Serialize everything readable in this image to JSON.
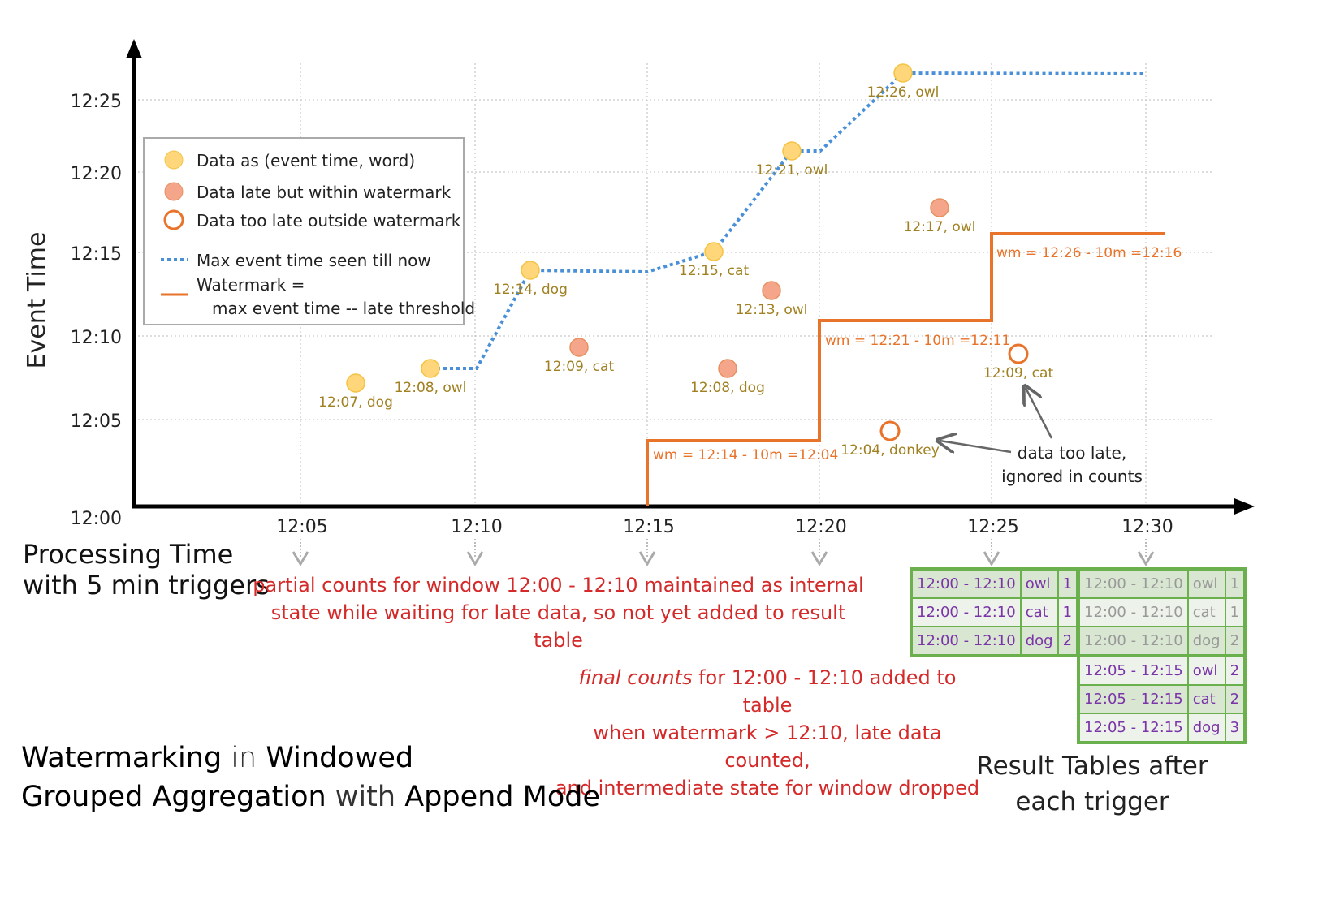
{
  "axes": {
    "y_label": "Event Time",
    "x_label_line1": "Processing Time",
    "x_label_line2": "with 5 min triggers",
    "y_ticks": [
      "12:00",
      "12:05",
      "12:10",
      "12:15",
      "12:20",
      "12:25"
    ],
    "x_ticks": [
      "12:05",
      "12:10",
      "12:15",
      "12:20",
      "12:25",
      "12:30"
    ]
  },
  "legend": {
    "on_time": "Data as (event time, word)",
    "late": "Data late but within watermark",
    "too_late": "Data too late outside watermark",
    "max_event": "Max event time seen till now",
    "watermark_1": "Watermark =",
    "watermark_2": "max event time -- late threshold"
  },
  "colors": {
    "on_time": "#ffd77a",
    "late": "#f4a58a",
    "too_late": "#e8732a",
    "max_event": "#4a90d9",
    "watermark": "#e8732a",
    "table": "#6ab04c"
  },
  "points": [
    {
      "type": "on_time",
      "label": "12:07, dog"
    },
    {
      "type": "on_time",
      "label": "12:08, owl"
    },
    {
      "type": "on_time",
      "label": "12:14, dog"
    },
    {
      "type": "on_time",
      "label": "12:15, cat"
    },
    {
      "type": "on_time",
      "label": "12:21, owl"
    },
    {
      "type": "on_time",
      "label": "12:26, owl"
    },
    {
      "type": "late",
      "label": "12:09, cat"
    },
    {
      "type": "late",
      "label": "12:08, dog"
    },
    {
      "type": "late",
      "label": "12:13, owl"
    },
    {
      "type": "late",
      "label": "12:17, owl"
    },
    {
      "type": "too_late",
      "label": "12:04, donkey"
    },
    {
      "type": "too_late",
      "label": "12:09, cat"
    }
  ],
  "watermark_labels": [
    "wm = 12:14 - 10m =12:04",
    "wm = 12:21 - 10m =12:11",
    "wm = 12:26 - 10m =12:16"
  ],
  "annotations": {
    "too_late_1": "data too late,",
    "too_late_2": "ignored in counts",
    "partial_1": "partial counts for window 12:00 - 12:10 maintained as internal",
    "partial_2": "state while waiting for late data, so not yet added  to result table",
    "final_em": "final counts",
    "final_1": " for 12:00 - 12:10 added to table",
    "final_2": "when watermark > 12:10, late data counted,",
    "final_3": "and intermediate state for window dropped"
  },
  "title": {
    "w1": "Watermarking",
    "w2": " in ",
    "w3": "Windowed",
    "w4": "Grouped Aggregation",
    "w5": " with ",
    "w6": "Append Mode"
  },
  "result_caption_1": "Result Tables after",
  "result_caption_2": "each trigger",
  "table_1225": [
    [
      "12:00 - 12:10",
      "owl",
      "1"
    ],
    [
      "12:00 - 12:10",
      "cat",
      "1"
    ],
    [
      "12:00 - 12:10",
      "dog",
      "2"
    ]
  ],
  "table_1230": [
    [
      "12:00 - 12:10",
      "owl",
      "1"
    ],
    [
      "12:00 - 12:10",
      "cat",
      "1"
    ],
    [
      "12:00 - 12:10",
      "dog",
      "2"
    ],
    [
      "12:05 - 12:15",
      "owl",
      "2"
    ],
    [
      "12:05 - 12:15",
      "cat",
      "2"
    ],
    [
      "12:05 - 12:15",
      "dog",
      "3"
    ]
  ]
}
